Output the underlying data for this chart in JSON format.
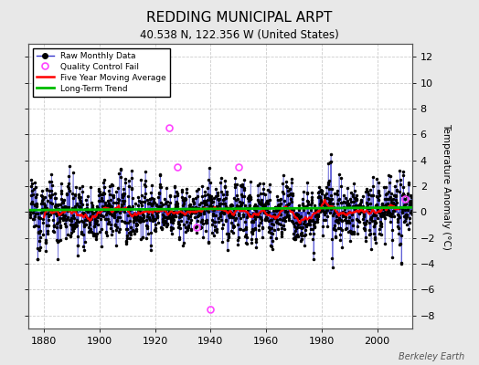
{
  "title": "REDDING MUNICIPAL ARPT",
  "subtitle": "40.538 N, 122.356 W (United States)",
  "ylabel": "Temperature Anomaly (°C)",
  "credit": "Berkeley Earth",
  "year_start": 1875,
  "year_end": 2013,
  "ylim": [
    -9,
    13
  ],
  "yticks": [
    -8,
    -6,
    -4,
    -2,
    0,
    2,
    4,
    6,
    8,
    10,
    12
  ],
  "xticks": [
    1880,
    1900,
    1920,
    1940,
    1960,
    1980,
    2000
  ],
  "bg_color": "#e8e8e8",
  "plot_bg_color": "#ffffff",
  "raw_line_color": "#3333cc",
  "raw_dot_color": "#000000",
  "qc_fail_color": "#ff44ff",
  "moving_avg_color": "#ff0000",
  "trend_color": "#00bb00",
  "title_fontsize": 11,
  "subtitle_fontsize": 8.5,
  "seed": 12345
}
